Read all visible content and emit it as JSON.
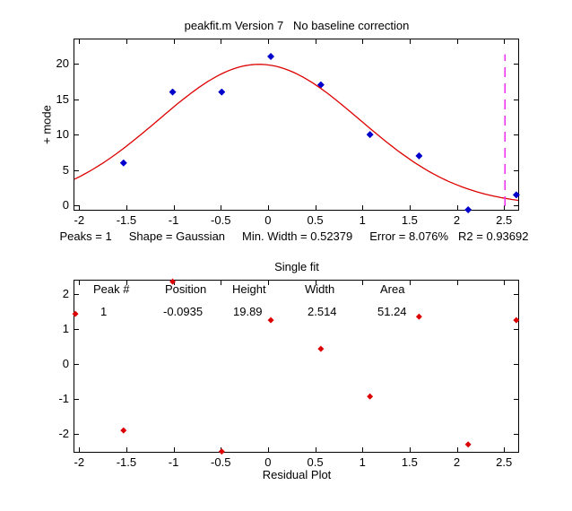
{
  "figure": {
    "top_plot": {
      "title": "peakfit.m Version 7   No baseline correction",
      "ylabel": "+ mode",
      "stats": [
        "Peaks = 1",
        "Shape = Gaussian",
        "Min. Width = 0.52379",
        "Error = 8.076%",
        "R2 = 0.93692"
      ]
    },
    "bottom_plot": {
      "title": "Single fit",
      "xlabel": "Residual Plot",
      "table": {
        "headers": [
          "Peak #",
          "Position",
          "Height",
          "Width",
          "Area"
        ],
        "rows": [
          [
            "1",
            "-0.0935",
            "19.89",
            "2.514",
            "51.24"
          ]
        ]
      }
    },
    "colors": {
      "data_points": "#0000cc",
      "fit_curve": "#dd0000",
      "residual_points": "#dd0000",
      "peak_marker": "#ee33ee"
    }
  },
  "chart_data": [
    {
      "type": "scatter",
      "title": "peakfit.m Version 7   No baseline correction",
      "ylabel": "+ mode",
      "xlabel": "",
      "xlim": [
        -2.05,
        2.65
      ],
      "ylim": [
        -0.6,
        23.4
      ],
      "x_ticks": [
        -2,
        -1.5,
        -1,
        -0.5,
        0,
        0.5,
        1,
        1.5,
        2,
        2.5
      ],
      "y_ticks": [
        0,
        5,
        10,
        15,
        20
      ],
      "grid": false,
      "series": [
        {
          "name": "data-point",
          "type": "scatter",
          "color": "#0000cc",
          "x": [
            -1.53,
            -1.01,
            -0.49,
            0.03,
            0.56,
            1.08,
            1.6,
            2.12,
            2.63
          ],
          "y": [
            6,
            16,
            16,
            21,
            17,
            10,
            7,
            -0.6,
            1.5
          ]
        },
        {
          "name": "fit-curve",
          "type": "line",
          "color": "#dd0000",
          "gaussian": {
            "center": -0.0935,
            "height": 19.89,
            "fwhm": 2.514
          },
          "x_range": [
            -2.05,
            2.65
          ]
        },
        {
          "name": "peak-marker",
          "type": "vline",
          "color": "#ee33ee",
          "x": 2.51,
          "y_range": [
            -0.1,
            21.3
          ],
          "style": "dashed"
        }
      ],
      "annotations": [
        "Peaks = 1",
        "Shape = Gaussian",
        "Min. Width = 0.52379",
        "Error = 8.076%",
        "R2 = 0.93692"
      ]
    },
    {
      "type": "scatter",
      "title": "Single fit",
      "xlabel": "Residual Plot",
      "xlim": [
        -2.05,
        2.65
      ],
      "ylim": [
        -2.51,
        2.38
      ],
      "x_ticks": [
        -2,
        -1.5,
        -1,
        -0.5,
        0,
        0.5,
        1,
        1.5,
        2,
        2.5
      ],
      "y_ticks": [
        -2,
        -1,
        0,
        1,
        2
      ],
      "grid": false,
      "series": [
        {
          "name": "residual-point",
          "type": "scatter",
          "color": "#dd0000",
          "x": [
            -2.04,
            -1.53,
            -1.01,
            -0.49,
            0.03,
            0.56,
            1.08,
            1.6,
            2.12,
            2.63
          ],
          "y": [
            1.43,
            -1.9,
            2.35,
            -2.5,
            1.25,
            0.43,
            -0.93,
            1.35,
            -2.3,
            1.25
          ]
        }
      ],
      "table": {
        "headers": [
          "Peak #",
          "Position",
          "Height",
          "Width",
          "Area"
        ],
        "rows": [
          [
            "1",
            "-0.0935",
            "19.89",
            "2.514",
            "51.24"
          ]
        ]
      }
    }
  ]
}
